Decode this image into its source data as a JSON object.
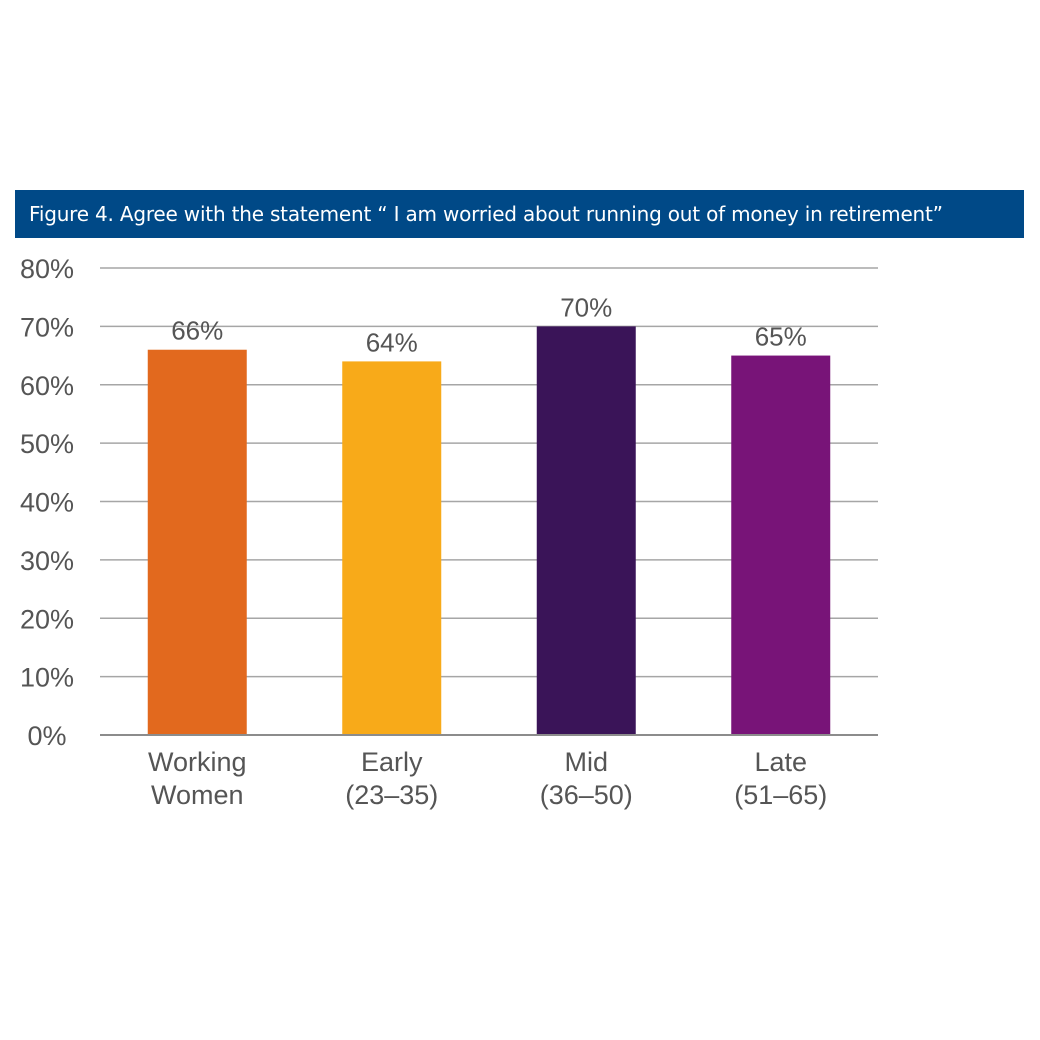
{
  "chart_data": {
    "type": "bar",
    "title": "Figure 4. Agree with the statement “ I am worried about running out of money in retirement”",
    "categories": [
      [
        "Working",
        "Women"
      ],
      [
        "Early",
        "(23–35)"
      ],
      [
        "Mid",
        "(36–50)"
      ],
      [
        "Late",
        "(51–65)"
      ]
    ],
    "values": [
      66,
      64,
      70,
      65
    ],
    "data_labels": [
      "66%",
      "64%",
      "70%",
      "65%"
    ],
    "colors": [
      "#E2691E",
      "#F8AA19",
      "#3A1458",
      "#781478"
    ],
    "xlabel": "",
    "ylabel": "",
    "ylim": [
      0,
      80
    ],
    "yticks": [
      0,
      10,
      20,
      30,
      40,
      50,
      60,
      70,
      80
    ],
    "ytick_labels": [
      "0%",
      "10%",
      "20%",
      "30%",
      "40%",
      "50%",
      "60%",
      "70%",
      "80%"
    ],
    "grid": true,
    "legend": "none"
  }
}
